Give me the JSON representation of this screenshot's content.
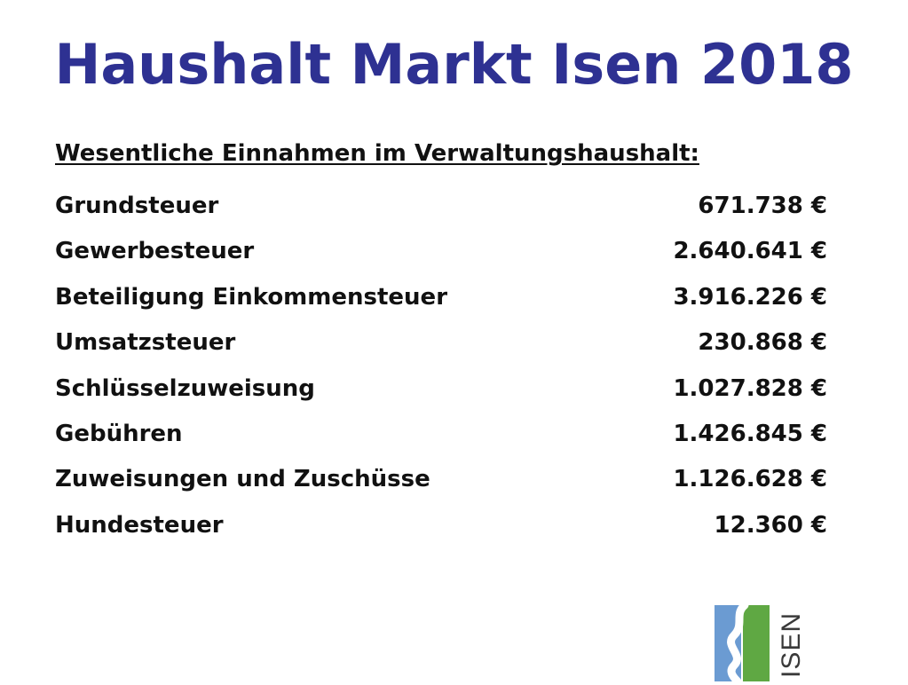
{
  "title": "Haushalt Markt Isen 2018",
  "section_heading": "Wesentliche Einnahmen im Verwaltungshaushalt:",
  "rows": [
    {
      "label": "Grundsteuer",
      "value": "671.738 €"
    },
    {
      "label": "Gewerbesteuer",
      "value": "2.640.641 €"
    },
    {
      "label": "Beteiligung Einkommensteuer",
      "value": "3.916.226 €"
    },
    {
      "label": "Umsatzsteuer",
      "value": "230.868 €"
    },
    {
      "label": "Schlüsselzuweisung",
      "value": "1.027.828 €"
    },
    {
      "label": "Gebühren",
      "value": "1.426.845 €"
    },
    {
      "label": "Zuweisungen und Zuschüsse",
      "value": "1.126.628 €"
    },
    {
      "label": "Hundesteuer",
      "value": "12.360 €"
    }
  ],
  "logo": {
    "text": "ISEN",
    "icon": "isen-river-logo",
    "colors": {
      "water": "#6b9bd2",
      "land": "#5fa843",
      "text": "#3a3a3a"
    }
  },
  "colors": {
    "title": "#2e3192",
    "text": "#111111",
    "background": "#ffffff"
  }
}
